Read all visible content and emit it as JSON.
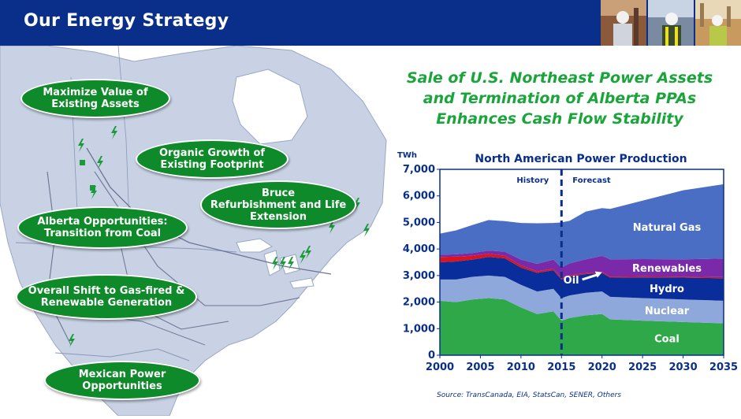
{
  "header": {
    "title": "Our Energy Strategy"
  },
  "map": {
    "ovals": [
      {
        "id": "maximize",
        "line1": "Maximize Value of",
        "line2": "Existing Assets"
      },
      {
        "id": "organic",
        "line1": "Organic Growth of",
        "line2": "Existing Footprint"
      },
      {
        "id": "bruce",
        "line1": "Bruce",
        "line2": "Refurbishment and Life",
        "line3": "Extension"
      },
      {
        "id": "alberta",
        "line1": "Alberta Opportunities:",
        "line2": "Transition from Coal"
      },
      {
        "id": "shift",
        "line1": "Overall Shift to Gas-fired &",
        "line2": "Renewable Generation"
      },
      {
        "id": "mexican",
        "line1": "Mexican Power",
        "line2": "Opportunities"
      }
    ]
  },
  "subtitle": {
    "line1": "Sale of U.S. Northeast Power Assets",
    "line2": "and Termination of Alberta PPAs",
    "line3": "Enhances Cash Flow Stability"
  },
  "source": "Source:  TransCanada, EIA, StatsCan, SENER, Others",
  "colors": {
    "header_bg": "#0a2f8a",
    "oval_green": "#0f8a2a",
    "subtitle_green": "#1aa53a",
    "coal": "#2fa84a",
    "nuclear": "#8fa8dc",
    "hydro": "#0a2d9c",
    "oil": "#d9141c",
    "renewables": "#7a2aa8",
    "natural_gas": "#4a6ec4"
  },
  "chart_data": {
    "type": "area",
    "title": "North American Power Production",
    "ylabel": "TWh",
    "xlim": [
      2000,
      2035
    ],
    "ylim": [
      0,
      7000
    ],
    "yticks": [
      0,
      1000,
      2000,
      3000,
      4000,
      5000,
      6000,
      7000
    ],
    "ytick_labels": [
      "0",
      "1,000",
      "2,000",
      "3,000",
      "4,000",
      "5,000",
      "6,000",
      "7,000"
    ],
    "xticks": [
      2000,
      2005,
      2010,
      2015,
      2020,
      2025,
      2030,
      2035
    ],
    "xtick_labels": [
      "2000",
      "2005",
      "2010",
      "2015",
      "2020",
      "2025",
      "2030",
      "2035"
    ],
    "divider_year": 2015,
    "history_label": "History",
    "forecast_label": "Forecast",
    "x": [
      2000,
      2002,
      2004,
      2006,
      2008,
      2010,
      2012,
      2014,
      2015,
      2016,
      2018,
      2020,
      2021,
      2025,
      2030,
      2035
    ],
    "series": [
      {
        "name": "Coal",
        "label": "Coal",
        "values": [
          2050,
          2000,
          2100,
          2150,
          2100,
          1800,
          1550,
          1650,
          1300,
          1400,
          1500,
          1550,
          1350,
          1300,
          1250,
          1200
        ]
      },
      {
        "name": "Nuclear",
        "label": "Nuclear",
        "values": [
          800,
          850,
          850,
          850,
          850,
          850,
          850,
          850,
          850,
          850,
          850,
          850,
          850,
          850,
          850,
          850
        ]
      },
      {
        "name": "Hydro",
        "label": "Hydro",
        "values": [
          650,
          680,
          650,
          700,
          700,
          650,
          700,
          700,
          700,
          720,
          700,
          700,
          720,
          780,
          820,
          850
        ]
      },
      {
        "name": "Oil",
        "label": "Oil",
        "values": [
          200,
          180,
          150,
          120,
          100,
          80,
          60,
          50,
          50,
          40,
          40,
          40,
          40,
          40,
          40,
          40
        ]
      },
      {
        "name": "Renewables",
        "label": "Renewables",
        "values": [
          80,
          90,
          100,
          120,
          150,
          220,
          280,
          350,
          400,
          450,
          520,
          600,
          650,
          650,
          650,
          700
        ]
      },
      {
        "name": "Natural Gas",
        "label": "Natural Gas",
        "values": [
          800,
          900,
          1050,
          1150,
          1150,
          1380,
          1530,
          1380,
          1700,
          1600,
          1800,
          1800,
          1900,
          2200,
          2600,
          2800
        ]
      }
    ],
    "annotation": {
      "text": "Oil",
      "arrow_to": "oil-band"
    }
  }
}
